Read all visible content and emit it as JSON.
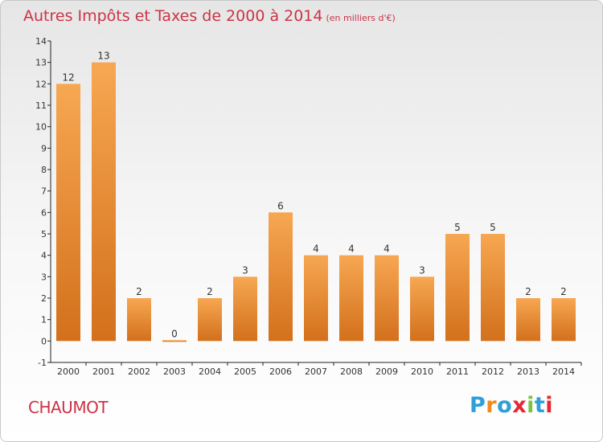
{
  "title": "Autres Impôts et Taxes de 2000 à 2014",
  "unit_note": "(en milliers d'€)",
  "place": "CHAUMOT",
  "brand": {
    "letters": [
      "P",
      "r",
      "o",
      "x",
      "i",
      "t",
      "i"
    ],
    "colors": [
      "#2f9fd8",
      "#f08a1c",
      "#2f9fd8",
      "#e8262f",
      "#7cc242",
      "#2f9fd8",
      "#e8262f"
    ]
  },
  "colors": {
    "bar_top": "#f7a752",
    "bar_bottom": "#d3701c",
    "title": "#cc3344",
    "axis": "#222222"
  },
  "chart_data": {
    "type": "bar",
    "categories": [
      "2000",
      "2001",
      "2002",
      "2003",
      "2004",
      "2005",
      "2006",
      "2007",
      "2008",
      "2009",
      "2010",
      "2011",
      "2012",
      "2013",
      "2014"
    ],
    "values": [
      12,
      13,
      2,
      0,
      2,
      3,
      6,
      4,
      4,
      4,
      3,
      5,
      5,
      2,
      2
    ],
    "data_labels": [
      "12",
      "13",
      "2",
      "0",
      "2",
      "3",
      "6",
      "4",
      "4",
      "4",
      "3",
      "5",
      "5",
      "2",
      "2"
    ],
    "yticks": [
      -1,
      0,
      1,
      2,
      3,
      4,
      5,
      6,
      7,
      8,
      9,
      10,
      11,
      12,
      13,
      14
    ],
    "ytick_labels": [
      "-1",
      "0",
      "1",
      "2",
      "3",
      "4",
      "5",
      "6",
      "7",
      "8",
      "9",
      "10",
      "11",
      "12",
      "13",
      "14"
    ],
    "ylim": [
      -1,
      14
    ],
    "grid": false,
    "xlabel": "",
    "ylabel": ""
  }
}
